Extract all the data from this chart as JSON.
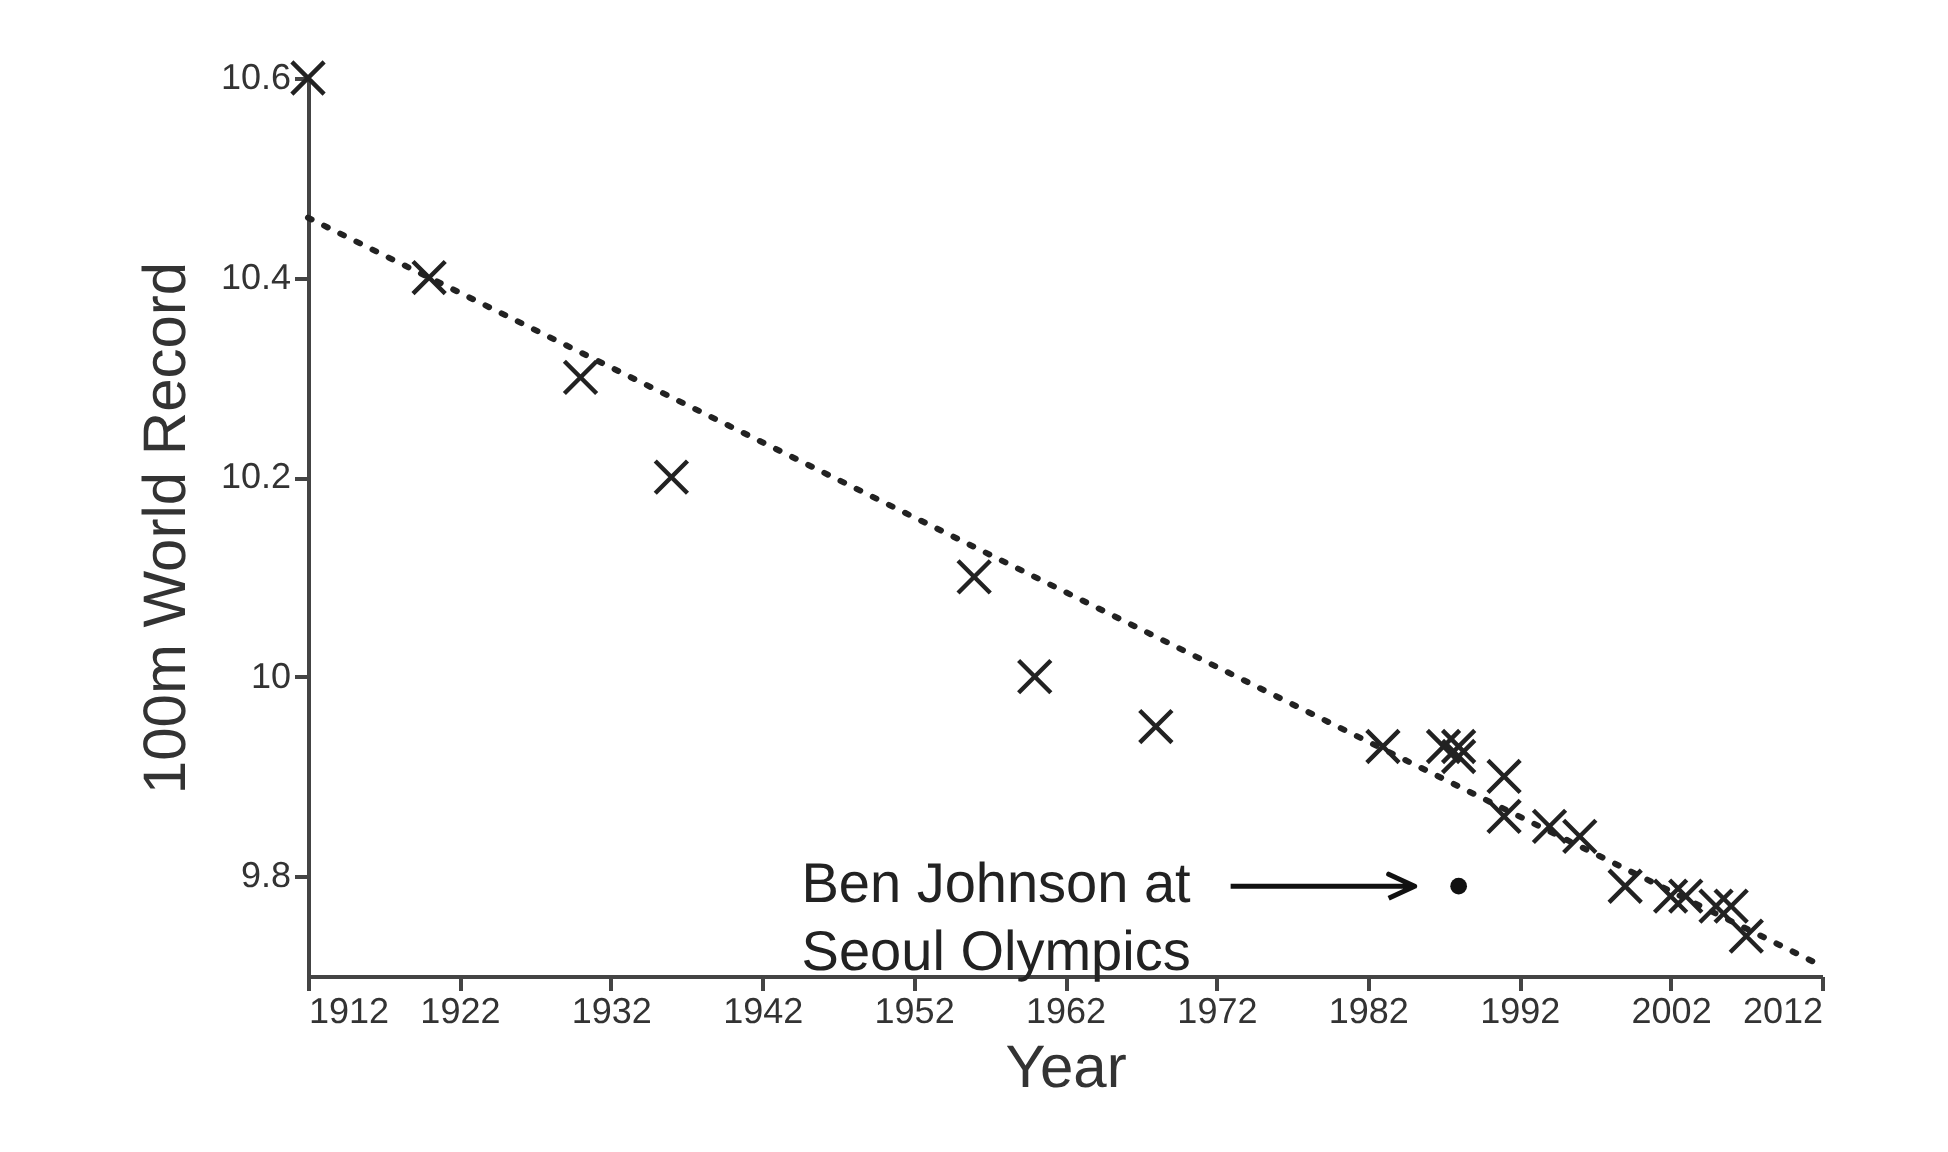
{
  "chart_data": {
    "type": "scatter",
    "xlabel": "Year",
    "ylabel": "100m World Record",
    "xlim": [
      1912,
      2012
    ],
    "ylim": [
      9.7,
      10.6
    ],
    "xticks": [
      1912,
      1922,
      1932,
      1942,
      1952,
      1962,
      1972,
      1982,
      1992,
      2002,
      2012
    ],
    "yticks": [
      9.8,
      10,
      10.2,
      10.4,
      10.6
    ],
    "grid": false,
    "series": [
      {
        "marker": "cross",
        "color": "#222222",
        "x": [
          1912,
          1920,
          1930,
          1936,
          1956,
          1960,
          1968,
          1983,
          1987,
          1988,
          1988,
          1991,
          1991,
          1994,
          1996,
          1999,
          2002,
          2003,
          2005,
          2006,
          2007
        ],
        "values": [
          10.6,
          10.4,
          10.3,
          10.2,
          10.1,
          10.0,
          9.95,
          9.93,
          9.93,
          9.93,
          9.92,
          9.9,
          9.86,
          9.85,
          9.84,
          9.79,
          9.78,
          9.78,
          9.77,
          9.77,
          9.74
        ]
      },
      {
        "type": "line",
        "line_style": "dotted",
        "color": "#222222",
        "x": [
          1912,
          2012
        ],
        "values": [
          10.46,
          9.71
        ]
      },
      {
        "type": "scatter",
        "marker": "circle",
        "color": "#111111",
        "x": [
          1988
        ],
        "values": [
          9.79
        ]
      }
    ],
    "annotations": [
      "Ben Johnson at\nSeoul Olympics"
    ]
  }
}
